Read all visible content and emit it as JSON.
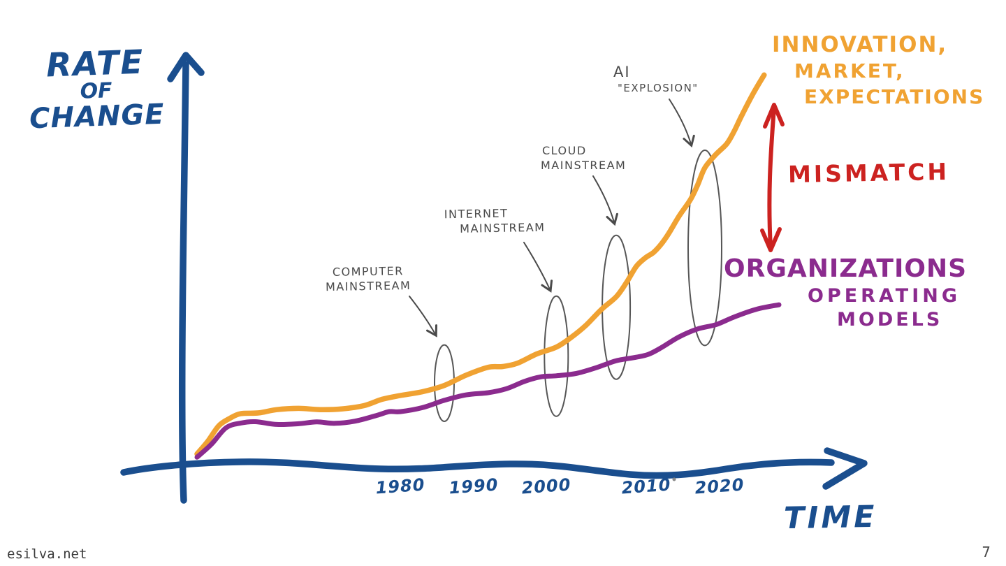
{
  "page": {
    "footer_left": "esilva.net",
    "page_number": "7"
  },
  "colors": {
    "axis_blue": "#1a4e8e",
    "innovation_orange": "#f0a232",
    "organizations_purple": "#8b2b8e",
    "mismatch_red": "#cc2220",
    "annotation_gray": "#4a4a4a"
  },
  "chart_data": {
    "type": "line",
    "title": "",
    "xlabel": "TIME",
    "ylabel": "RATE OF CHANGE",
    "ylabel_lines": [
      "RATE",
      "OF",
      "CHANGE"
    ],
    "x_ticks": [
      "1980",
      "1990",
      "2000",
      "2010",
      "2020"
    ],
    "x_range": [
      1950,
      2028
    ],
    "y_range": [
      0,
      100
    ],
    "y_unit": "relative rate of change (unlabeled, conceptual)",
    "grid": false,
    "legend_position": "right-along-curves",
    "series": [
      {
        "name": "Innovation, Market, Expectations",
        "label_lines": [
          "INNOVATION,",
          "MARKET,",
          "EXPECTATIONS"
        ],
        "color": "#f0a232",
        "points": [
          [
            1952,
            3
          ],
          [
            1955,
            10
          ],
          [
            1958,
            13
          ],
          [
            1963,
            14
          ],
          [
            1969,
            14
          ],
          [
            1975,
            15
          ],
          [
            1980,
            17.5
          ],
          [
            1986,
            20
          ],
          [
            1992,
            24.5
          ],
          [
            1996,
            25.5
          ],
          [
            2001,
            29.5
          ],
          [
            2004,
            35
          ],
          [
            2007,
            42
          ],
          [
            2009,
            49.5
          ],
          [
            2011,
            53
          ],
          [
            2013,
            57.5
          ],
          [
            2016,
            66
          ],
          [
            2018,
            74
          ],
          [
            2021,
            80
          ],
          [
            2023,
            87
          ],
          [
            2026,
            97
          ]
        ]
      },
      {
        "name": "Organizations Operating Models",
        "label_lines": [
          "ORGANIZATIONS",
          "OPERATING",
          "MODELS"
        ],
        "color": "#8b2b8e",
        "points": [
          [
            1952,
            2.2
          ],
          [
            1956,
            9.5
          ],
          [
            1960,
            11
          ],
          [
            1966,
            10.5
          ],
          [
            1971,
            10.6
          ],
          [
            1977,
            12.7
          ],
          [
            1980,
            13.5
          ],
          [
            1986,
            16.3
          ],
          [
            1992,
            18.2
          ],
          [
            1997,
            21
          ],
          [
            2001,
            22.4
          ],
          [
            2005,
            24.4
          ],
          [
            2009,
            27
          ],
          [
            2012,
            29.3
          ],
          [
            2017,
            34
          ],
          [
            2022,
            37
          ],
          [
            2028,
            40
          ]
        ]
      }
    ],
    "gap_label": "MISMATCH",
    "annotations": [
      {
        "label_lines": [
          "COMPUTER",
          "MAINSTREAM"
        ],
        "year": 1986
      },
      {
        "label_lines": [
          "INTERNET",
          "MAINSTREAM"
        ],
        "year": 2001
      },
      {
        "label_lines": [
          "CLOUD",
          "MAINSTREAM"
        ],
        "year": 2007
      },
      {
        "label_lines": [
          "AI",
          "\"EXPLOSION\""
        ],
        "year": 2018
      }
    ]
  }
}
